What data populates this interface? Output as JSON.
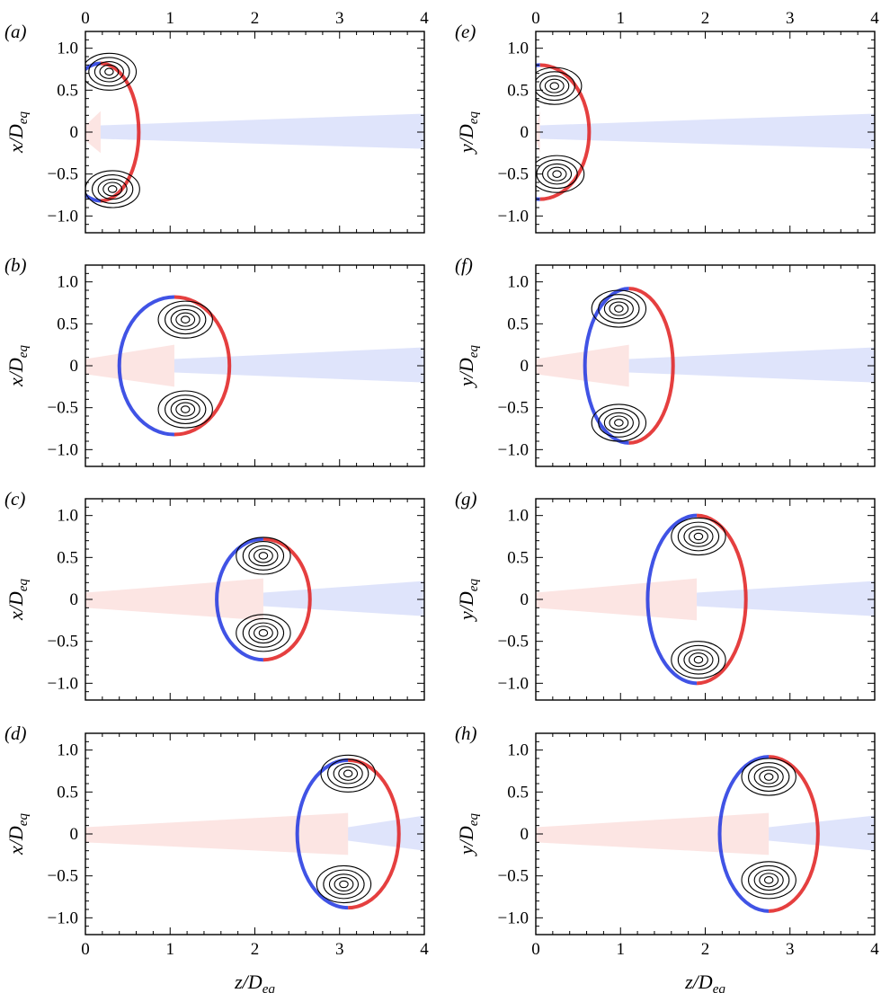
{
  "chart_data": {
    "type": "contour",
    "x_ticks": [
      0,
      1,
      2,
      3,
      4
    ],
    "y_ticks": [
      1.0,
      0.5,
      0,
      -0.5,
      -1.0
    ],
    "y_tick_labels": [
      "1.0",
      "0.5",
      "0",
      "−0.5",
      "−1.0"
    ],
    "xlim": [
      0,
      4
    ],
    "ylim": [
      -1.2,
      1.2
    ],
    "xlabel": "z/D",
    "xlabel_sub": "eq",
    "colors": {
      "negative": "#1f35e0",
      "positive": "#e11d1d",
      "contour": "#000000"
    },
    "panels": [
      {
        "label": "(a)",
        "ylabel": "x/D",
        "ylabel_sub": "eq",
        "column": 0,
        "row": 0,
        "bubble": {
          "zc": 0.18,
          "hw": 0.45,
          "hh": 0.82
        },
        "vortex_upper": [
          0.28,
          0.72
        ],
        "vortex_lower": [
          0.32,
          -0.68
        ]
      },
      {
        "label": "(b)",
        "ylabel": "x/D",
        "ylabel_sub": "eq",
        "column": 0,
        "row": 1,
        "bubble": {
          "zc": 1.05,
          "hw": 0.65,
          "hh": 0.82
        },
        "vortex_upper": [
          1.18,
          0.55
        ],
        "vortex_lower": [
          1.18,
          -0.52
        ]
      },
      {
        "label": "(c)",
        "ylabel": "x/D",
        "ylabel_sub": "eq",
        "column": 0,
        "row": 2,
        "bubble": {
          "zc": 2.1,
          "hw": 0.55,
          "hh": 0.72
        },
        "vortex_upper": [
          2.1,
          0.52
        ],
        "vortex_lower": [
          2.1,
          -0.4
        ]
      },
      {
        "label": "(d)",
        "ylabel": "x/D",
        "ylabel_sub": "eq",
        "column": 0,
        "row": 3,
        "bubble": {
          "zc": 3.1,
          "hw": 0.6,
          "hh": 0.88
        },
        "vortex_upper": [
          3.1,
          0.72
        ],
        "vortex_lower": [
          3.05,
          -0.6
        ]
      },
      {
        "label": "(e)",
        "ylabel": "y/D",
        "ylabel_sub": "eq",
        "column": 1,
        "row": 0,
        "bubble": {
          "zc": 0.05,
          "hw": 0.58,
          "hh": 0.8
        },
        "vortex_upper": [
          0.22,
          0.55
        ],
        "vortex_lower": [
          0.25,
          -0.5
        ]
      },
      {
        "label": "(f)",
        "ylabel": "y/D",
        "ylabel_sub": "eq",
        "column": 1,
        "row": 1,
        "bubble": {
          "zc": 1.1,
          "hw": 0.52,
          "hh": 0.92
        },
        "vortex_upper": [
          0.98,
          0.68
        ],
        "vortex_lower": [
          0.98,
          -0.68
        ]
      },
      {
        "label": "(g)",
        "ylabel": "y/D",
        "ylabel_sub": "eq",
        "column": 1,
        "row": 2,
        "bubble": {
          "zc": 1.9,
          "hw": 0.58,
          "hh": 1.0
        },
        "vortex_upper": [
          1.92,
          0.75
        ],
        "vortex_lower": [
          1.92,
          -0.72
        ]
      },
      {
        "label": "(h)",
        "ylabel": "y/D",
        "ylabel_sub": "eq",
        "column": 1,
        "row": 3,
        "bubble": {
          "zc": 2.75,
          "hw": 0.58,
          "hh": 0.92
        },
        "vortex_upper": [
          2.75,
          0.68
        ],
        "vortex_lower": [
          2.75,
          -0.55
        ]
      }
    ]
  }
}
